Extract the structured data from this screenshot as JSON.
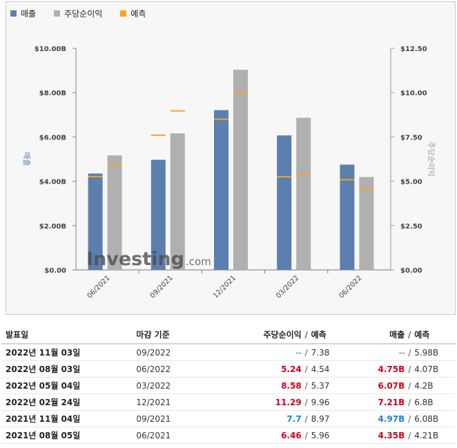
{
  "legend": {
    "revenue": {
      "label": "매출",
      "color": "#5b7fae"
    },
    "eps": {
      "label": "주당순이익",
      "color": "#b0b0b0"
    },
    "forecast": {
      "label": "예측",
      "color": "#f0a81c"
    }
  },
  "chart_data": {
    "type": "bar",
    "categories": [
      "06/2021",
      "09/2021",
      "12/2021",
      "03/2022",
      "06/2022"
    ],
    "series": [
      {
        "name": "매출",
        "axis": "left",
        "values": [
          4.35,
          4.97,
          7.21,
          6.07,
          4.75
        ],
        "color": "#5b7fae"
      },
      {
        "name": "주당순이익",
        "axis": "right",
        "values": [
          6.46,
          7.7,
          11.29,
          8.58,
          5.24
        ],
        "color": "#b0b0b0"
      }
    ],
    "forecasts": {
      "revenue": [
        4.21,
        6.08,
        6.8,
        4.2,
        4.07
      ],
      "eps": [
        5.96,
        8.97,
        9.96,
        5.37,
        4.54
      ]
    },
    "ylabel_left": "매출",
    "ylabel_right": "주당순이익",
    "ylim_left": [
      0,
      10
    ],
    "ylim_right": [
      0,
      12.5
    ],
    "yticks_left": [
      "$0.00",
      "$2.00B",
      "$4.00B",
      "$6.00B",
      "$8.00B",
      "$10.00B"
    ],
    "yticks_right": [
      "$0.00",
      "$2.50",
      "$5.00",
      "$7.50",
      "$10.00",
      "$12.50"
    ],
    "grid": false,
    "legend_position": "top-left"
  },
  "watermark": {
    "brand": "Investing",
    "suffix": ".com"
  },
  "table": {
    "headers": {
      "date": "발표일",
      "period": "마감 기준",
      "eps": "주당순이익",
      "sep": "/",
      "eps_forecast": "예측",
      "revenue": "매출",
      "revenue_forecast": "예측"
    },
    "rows": [
      {
        "date": "2022년 11월 03일",
        "period": "09/2022",
        "eps": "--",
        "eps_forecast": "7.38",
        "revenue": "--",
        "revenue_forecast": "5.98B",
        "eps_class": "neutral",
        "rev_class": "neutral"
      },
      {
        "date": "2022년 08월 03일",
        "period": "06/2022",
        "eps": "5.24",
        "eps_forecast": "4.54",
        "revenue": "4.75B",
        "revenue_forecast": "4.07B",
        "eps_class": "red",
        "rev_class": "red"
      },
      {
        "date": "2022년 05월 04일",
        "period": "03/2022",
        "eps": "8.58",
        "eps_forecast": "5.37",
        "revenue": "6.07B",
        "revenue_forecast": "4.2B",
        "eps_class": "red",
        "rev_class": "red"
      },
      {
        "date": "2022년 02월 24일",
        "period": "12/2021",
        "eps": "11.29",
        "eps_forecast": "9.96",
        "revenue": "7.21B",
        "revenue_forecast": "6.8B",
        "eps_class": "red",
        "rev_class": "red"
      },
      {
        "date": "2021년 11월 04일",
        "period": "09/2021",
        "eps": "7.7",
        "eps_forecast": "8.97",
        "revenue": "4.97B",
        "revenue_forecast": "6.08B",
        "eps_class": "blue",
        "rev_class": "blue"
      },
      {
        "date": "2021년 08월 05일",
        "period": "06/2021",
        "eps": "6.46",
        "eps_forecast": "5.96",
        "revenue": "4.35B",
        "revenue_forecast": "4.21B",
        "eps_class": "red",
        "rev_class": "red"
      }
    ]
  }
}
